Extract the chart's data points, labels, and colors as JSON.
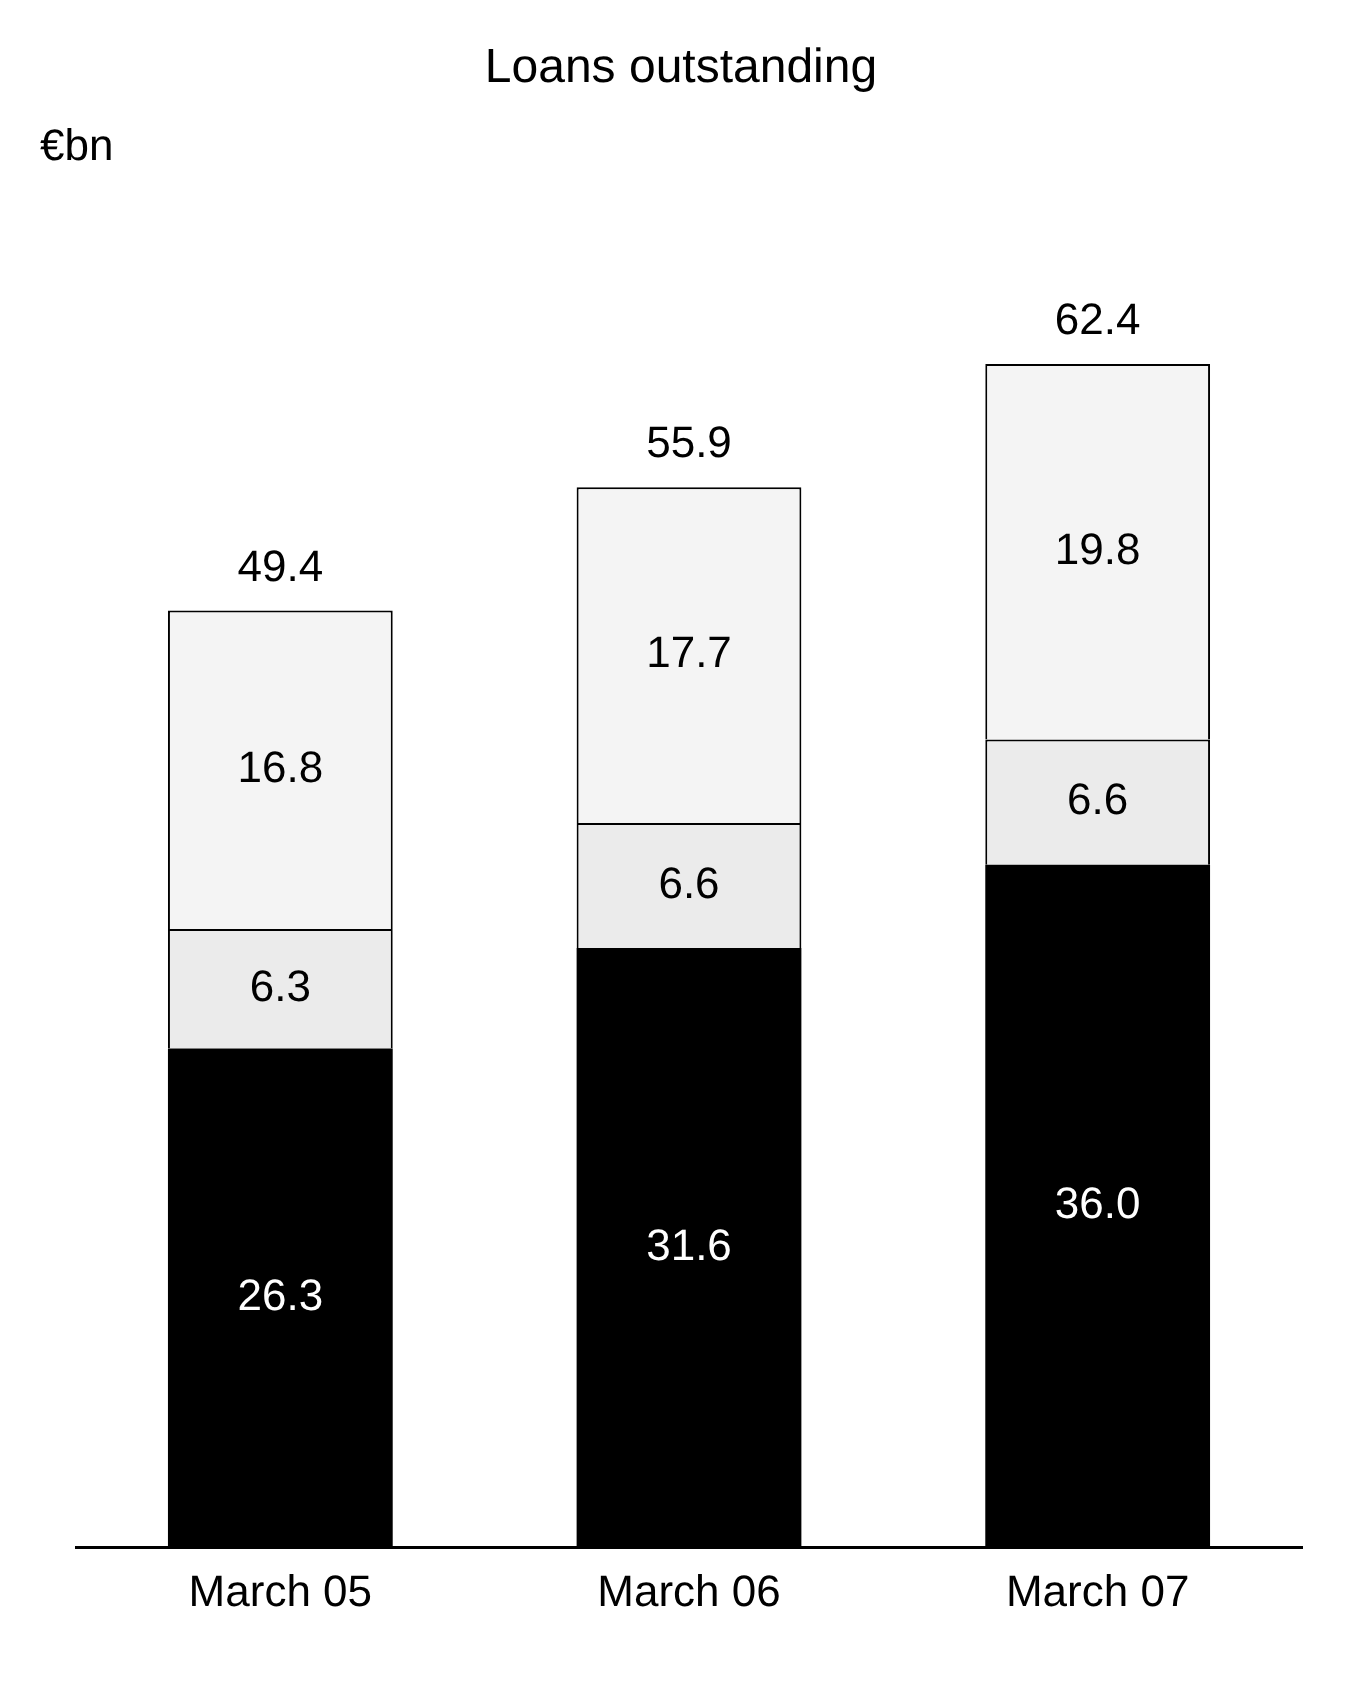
{
  "chart_data": {
    "type": "bar",
    "title": "Loans outstanding",
    "ylabel": "€bn",
    "categories": [
      "March 05",
      "March 06",
      "March 07"
    ],
    "stacked": true,
    "data_labels": true,
    "legend": false,
    "grid": false,
    "tick_labels": "x",
    "series": [
      {
        "color": "#000000",
        "values": [
          26.3,
          31.6,
          36.0
        ],
        "value_labels": [
          "26.3",
          "31.6",
          "36.0"
        ]
      },
      {
        "color": "#ebebeb",
        "values": [
          6.3,
          6.6,
          6.6
        ]
      },
      {
        "color": "#f4f4f4",
        "values": [
          16.8,
          17.7,
          19.8
        ]
      }
    ],
    "totals": [
      "49.4",
      "55.9",
      "62.4"
    ]
  }
}
